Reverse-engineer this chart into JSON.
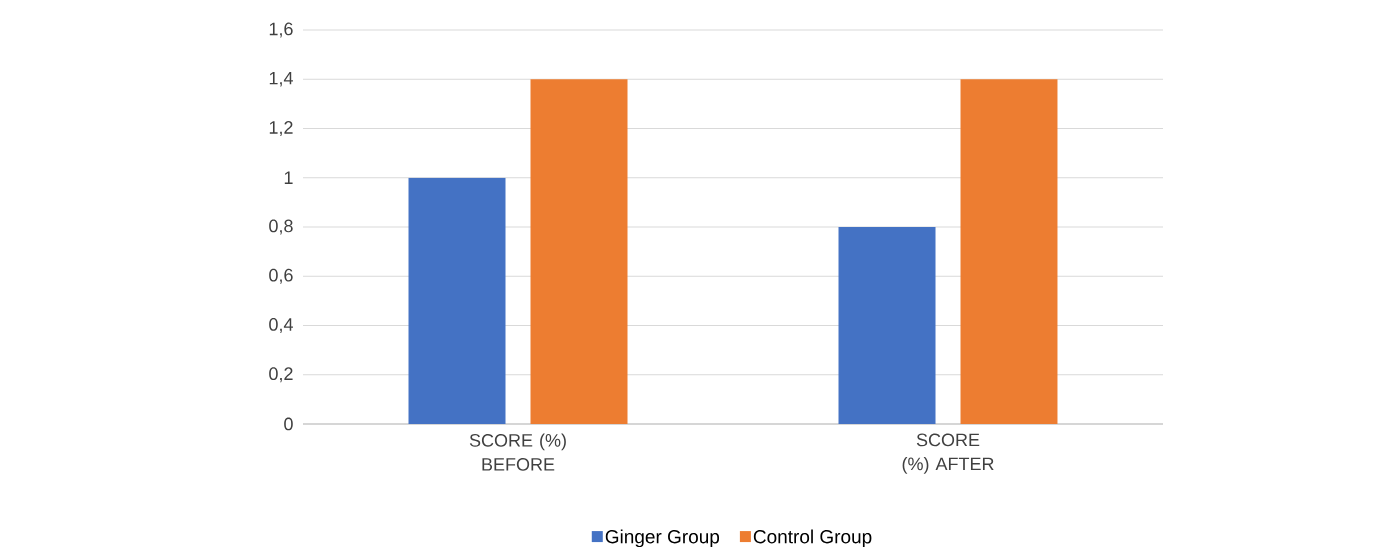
{
  "chart_data": {
    "type": "bar",
    "categories": [
      "SCORE (%) BEFORE",
      "SCORE (%) AFTER"
    ],
    "series": [
      {
        "name": "Ginger Group",
        "color": "#4472c4",
        "values": [
          1,
          0.8
        ]
      },
      {
        "name": "Control Group",
        "color": "#ed7d31",
        "values": [
          1.4,
          1.4
        ]
      }
    ],
    "ylim": [
      0,
      1.6
    ],
    "yticks": [
      0,
      {
        "value": 0.2,
        "label": "0,2"
      },
      {
        "value": 0.4,
        "label": "0,4"
      },
      {
        "value": 0.6,
        "label": "0,6"
      },
      {
        "value": 0.8,
        "label": "0,8"
      },
      1,
      {
        "value": 1.2,
        "label": "1,2"
      },
      {
        "value": 1.4,
        "label": "1,4"
      },
      {
        "value": 1.6,
        "label": "1,6"
      }
    ],
    "grid": "y",
    "legend": "bottom"
  }
}
